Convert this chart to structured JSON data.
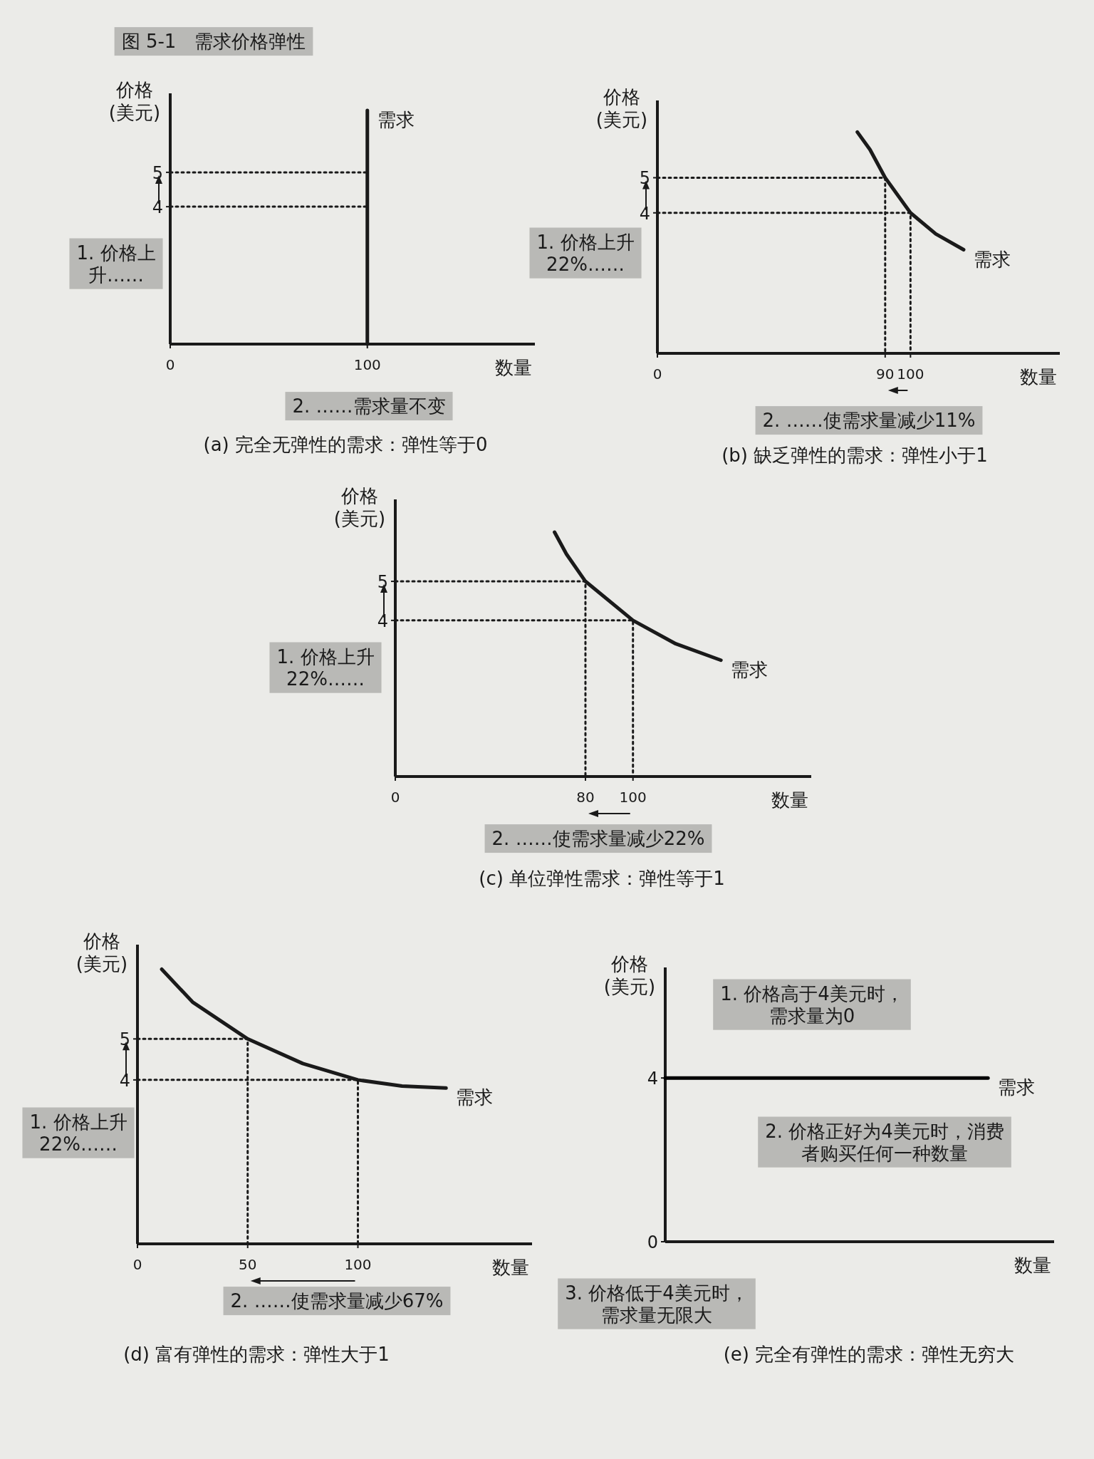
{
  "chart_data": [
    {
      "type": "line",
      "title": "(a) 完全无弹性的需求：弹性等于0",
      "xlabel": "数量",
      "ylabel": "价格\n(美元)",
      "xlim": [
        0,
        185
      ],
      "ylim": [
        0,
        7.3
      ],
      "xticks": [
        0,
        100
      ],
      "yticks": [
        4,
        5
      ],
      "annotations": [
        "图 5-1　需求价格弹性",
        "1. 价格上升……",
        "2. ……需求量不变"
      ],
      "series": [
        {
          "name": "需求",
          "color": "#1a1a1a",
          "x": [
            100,
            100
          ],
          "values": [
            0,
            6.8
          ],
          "line_style": "solid"
        },
        {
          "color": "#1a1a1a",
          "x": [
            0,
            100
          ],
          "values": [
            5,
            5
          ],
          "line_style": "dotted"
        },
        {
          "color": "#1a1a1a",
          "x": [
            0,
            100
          ],
          "values": [
            4,
            4
          ],
          "line_style": "dotted"
        }
      ]
    },
    {
      "type": "line",
      "title": "(b) 缺乏弹性的需求：弹性小于1",
      "xlabel": "数量",
      "ylabel": "价格\n(美元)",
      "xlim": [
        0,
        159
      ],
      "ylim": [
        0,
        7.2
      ],
      "xticks": [
        0,
        90,
        100
      ],
      "yticks": [
        4,
        5
      ],
      "annotations": [
        "1. 价格上升22%……",
        "2. ……使需求量减少11%"
      ],
      "series": [
        {
          "name": "需求",
          "color": "#1a1a1a",
          "x": [
            79,
            84,
            90,
            100,
            110,
            121
          ],
          "values": [
            6.3,
            5.8,
            5,
            4,
            3.4,
            2.95
          ],
          "line_style": "solid"
        },
        {
          "color": "#1a1a1a",
          "x": [
            0,
            90,
            90
          ],
          "values": [
            5,
            5,
            0
          ],
          "line_style": "dotted"
        },
        {
          "color": "#1a1a1a",
          "x": [
            0,
            100,
            100
          ],
          "values": [
            4,
            4,
            0
          ],
          "line_style": "dotted"
        }
      ]
    },
    {
      "type": "line",
      "title": "(c) 单位弹性需求：弹性等于1",
      "xlabel": "数量",
      "ylabel": "价格\n(美元)",
      "xlim": [
        0,
        175
      ],
      "ylim": [
        0,
        7.1
      ],
      "xticks": [
        0,
        80,
        100
      ],
      "yticks": [
        4,
        5
      ],
      "annotations": [
        "1. 价格上升22%……",
        "2. ……使需求量减少22%"
      ],
      "series": [
        {
          "name": "需求",
          "color": "#1a1a1a",
          "x": [
            67,
            72,
            80,
            100,
            118,
            137
          ],
          "values": [
            6.26,
            5.7,
            5,
            4,
            3.4,
            2.98
          ],
          "line_style": "solid"
        },
        {
          "color": "#1a1a1a",
          "x": [
            0,
            80,
            80
          ],
          "values": [
            5,
            5,
            0
          ],
          "line_style": "dotted"
        },
        {
          "color": "#1a1a1a",
          "x": [
            0,
            100,
            100
          ],
          "values": [
            4,
            4,
            0
          ],
          "line_style": "dotted"
        }
      ]
    },
    {
      "type": "line",
      "title": "(d) 富有弹性的需求：弹性大于1",
      "xlabel": "数量",
      "ylabel": "价格\n(美元)",
      "xlim": [
        0,
        179
      ],
      "ylim": [
        0,
        7.3
      ],
      "xticks": [
        0,
        50,
        100
      ],
      "yticks": [
        4,
        5
      ],
      "annotations": [
        "1. 价格上升22%……",
        "2. ……使需求量减少67%"
      ],
      "series": [
        {
          "name": "需求",
          "color": "#1a1a1a",
          "x": [
            11,
            25,
            50,
            75,
            100,
            120,
            140
          ],
          "values": [
            6.7,
            5.9,
            5,
            4.4,
            4,
            3.85,
            3.8
          ],
          "line_style": "solid"
        },
        {
          "color": "#1a1a1a",
          "x": [
            0,
            50,
            50
          ],
          "values": [
            5,
            5,
            0
          ],
          "line_style": "dotted"
        },
        {
          "color": "#1a1a1a",
          "x": [
            0,
            100,
            100
          ],
          "values": [
            4,
            4,
            0
          ],
          "line_style": "dotted"
        }
      ]
    },
    {
      "type": "line",
      "title": "(e) 完全有弹性的需求：弹性无穷大",
      "xlabel": "数量",
      "ylabel": "价格\n(美元)",
      "categories": [
        null,
        null
      ],
      "ylim": [
        0,
        6.7
      ],
      "yticks": [
        0,
        4
      ],
      "annotations": [
        "1. 价格高于4美元时，需求量为0",
        "2. 价格正好为4美元时，消费者购买任何一种数量",
        "3. 价格低于4美元时，需求量无限大"
      ],
      "series": [
        {
          "name": "需求",
          "color": "#000000",
          "values": [
            4,
            4
          ],
          "line_style": "solid"
        }
      ]
    }
  ]
}
